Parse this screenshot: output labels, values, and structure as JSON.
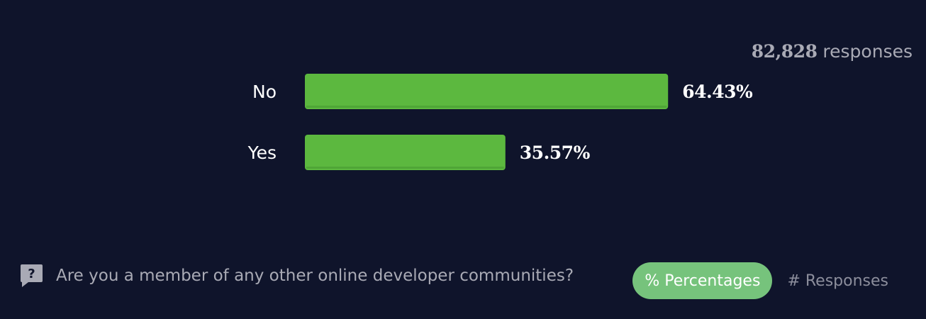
{
  "header": {
    "responses_number": "82,828",
    "responses_suffix": "responses"
  },
  "chart_data": {
    "type": "bar",
    "orientation": "horizontal",
    "categories": [
      "No",
      "Yes"
    ],
    "values": [
      64.43,
      35.57
    ],
    "value_labels": [
      "64.43%",
      "35.57%"
    ],
    "unit": "%",
    "xlim": [
      0,
      100
    ],
    "bar_color": "#5cb83f",
    "grid": false
  },
  "footer": {
    "question": "Are you a member of any other online developer communities?",
    "icon": "question-bubble-icon"
  },
  "toggle": {
    "percentages_label": "% Percentages",
    "responses_label": "# Responses",
    "active": "percentages"
  },
  "colors": {
    "background": "#0f142b",
    "bar": "#5cb83f",
    "toggle_active": "#76c37c",
    "muted_text": "#a9aab5"
  }
}
